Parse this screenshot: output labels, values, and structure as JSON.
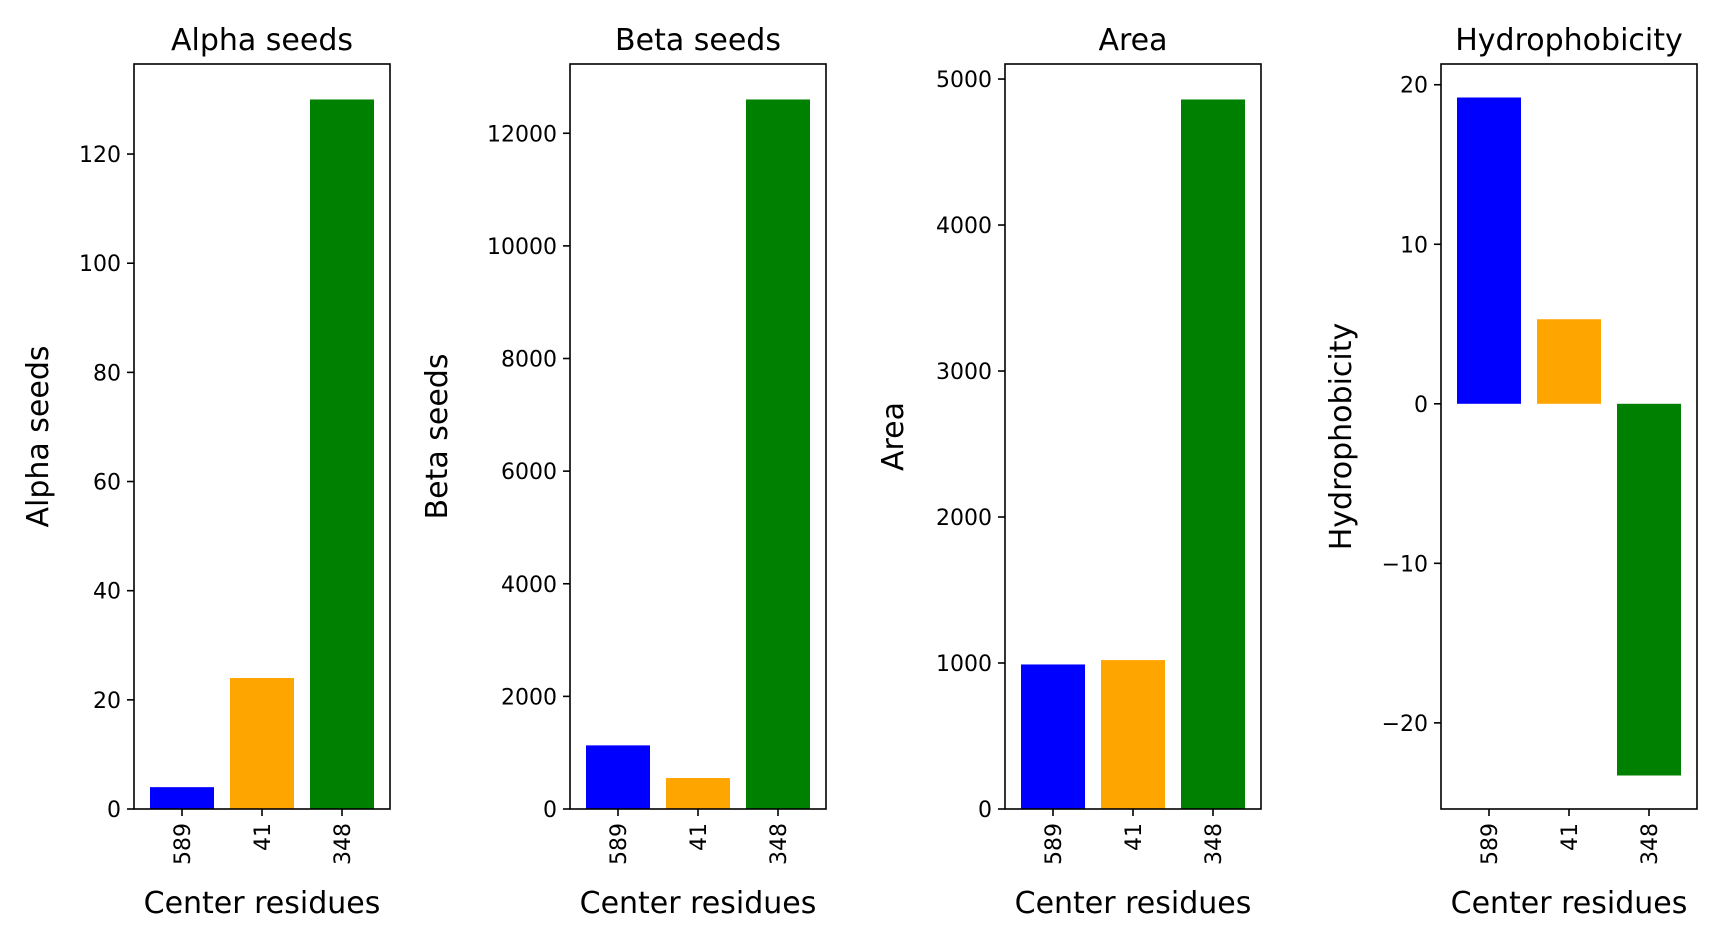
{
  "chart_data": [
    {
      "type": "bar",
      "title": "Alpha seeds",
      "xlabel": "Center residues",
      "ylabel": "Alpha seeds",
      "categories": [
        "589",
        "41",
        "348"
      ],
      "values": [
        4,
        24,
        130
      ],
      "colors": [
        "#0000ff",
        "#ffa500",
        "#008000"
      ],
      "ylim": [
        0,
        136.5
      ],
      "yticks": [
        0,
        20,
        40,
        60,
        80,
        100,
        120
      ],
      "ytick_labels": [
        "0",
        "20",
        "40",
        "60",
        "80",
        "100",
        "120"
      ],
      "grid": false,
      "legend": "none"
    },
    {
      "type": "bar",
      "title": "Beta seeds",
      "xlabel": "Center residues",
      "ylabel": "Beta seeds",
      "categories": [
        "589",
        "41",
        "348"
      ],
      "values": [
        1130,
        550,
        12600
      ],
      "colors": [
        "#0000ff",
        "#ffa500",
        "#008000"
      ],
      "ylim": [
        0,
        13230
      ],
      "yticks": [
        0,
        2000,
        4000,
        6000,
        8000,
        10000,
        12000
      ],
      "ytick_labels": [
        "0",
        "2000",
        "4000",
        "6000",
        "8000",
        "10000",
        "12000"
      ],
      "grid": false,
      "legend": "none"
    },
    {
      "type": "bar",
      "title": "Area",
      "xlabel": "Center residues",
      "ylabel": "Area",
      "categories": [
        "589",
        "41",
        "348"
      ],
      "values": [
        990,
        1020,
        4860
      ],
      "colors": [
        "#0000ff",
        "#ffa500",
        "#008000"
      ],
      "ylim": [
        0,
        5103
      ],
      "yticks": [
        0,
        1000,
        2000,
        3000,
        4000,
        5000
      ],
      "ytick_labels": [
        "0",
        "1000",
        "2000",
        "3000",
        "4000",
        "5000"
      ],
      "grid": false,
      "legend": "none"
    },
    {
      "type": "bar",
      "title": "Hydrophobicity",
      "xlabel": "Center residues",
      "ylabel": "Hydrophobicity",
      "categories": [
        "589",
        "41",
        "348"
      ],
      "values": [
        19.2,
        5.3,
        -23.3
      ],
      "colors": [
        "#0000ff",
        "#ffa500",
        "#008000"
      ],
      "ylim": [
        -25.4,
        21.3
      ],
      "yticks": [
        -20,
        -10,
        0,
        10,
        20
      ],
      "ytick_labels": [
        "−20",
        "−10",
        "0",
        "10",
        "20"
      ],
      "grid": false,
      "legend": "none"
    }
  ]
}
